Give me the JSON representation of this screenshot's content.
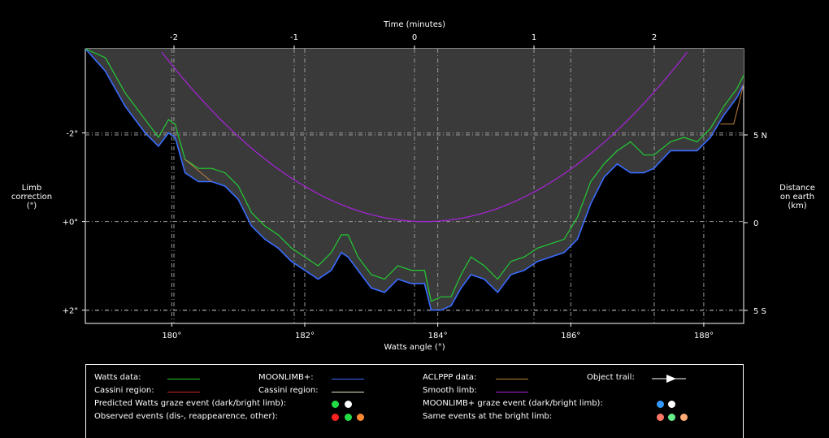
{
  "chart_data": {
    "type": "line",
    "top_axis": {
      "label": "Time (minutes)",
      "ticks": [
        "-2",
        "-1",
        "0",
        "1",
        "2"
      ]
    },
    "bottom_axis": {
      "label": "Watts angle (°)",
      "ticks": [
        "180°",
        "182°",
        "184°",
        "186°",
        "188°"
      ],
      "xlim": [
        178.7,
        188.6
      ]
    },
    "left_axis": {
      "label_lines": [
        "Limb",
        "correction",
        "(\")"
      ],
      "ticks": [
        "-2\"",
        "+0\"",
        "+2\""
      ],
      "ylim": [
        -3.9,
        2.3
      ],
      "inverted": true
    },
    "right_axis": {
      "label_lines": [
        "Distance",
        "on earth",
        "(km)"
      ],
      "ticks": [
        "5 N",
        "0",
        "5 S"
      ]
    },
    "grid": true,
    "colors": {
      "watts": "#22cc33",
      "moonlimb": "#3a6cff",
      "aclppp": "#c08040",
      "smooth": "#aa22dd",
      "cassini_watts": "#cc2222",
      "cassini_moonlimb": "#e8e8c8",
      "fill": "#3a3a3a"
    },
    "series": [
      {
        "name": "Watts data",
        "x": [
          178.7,
          179.0,
          179.3,
          179.6,
          179.8,
          179.95,
          180.05,
          180.2,
          180.4,
          180.6,
          180.8,
          181.0,
          181.2,
          181.4,
          181.6,
          181.8,
          182.0,
          182.2,
          182.4,
          182.55,
          182.65,
          182.8,
          183.0,
          183.2,
          183.4,
          183.6,
          183.8,
          183.9,
          184.05,
          184.2,
          184.35,
          184.5,
          184.7,
          184.9,
          185.1,
          185.3,
          185.5,
          185.7,
          185.9,
          186.1,
          186.3,
          186.5,
          186.7,
          186.9,
          187.1,
          187.25,
          187.5,
          187.7,
          187.9,
          188.1,
          188.3,
          188.5,
          188.6
        ],
        "y": [
          -4.0,
          -3.7,
          -2.9,
          -2.3,
          -1.9,
          -2.3,
          -2.2,
          -1.4,
          -1.2,
          -1.2,
          -1.1,
          -0.8,
          -0.2,
          0.1,
          0.3,
          0.6,
          0.8,
          1.0,
          0.7,
          0.3,
          0.3,
          0.8,
          1.2,
          1.3,
          1.0,
          1.1,
          1.1,
          1.8,
          1.7,
          1.7,
          1.2,
          0.8,
          1.0,
          1.3,
          0.9,
          0.8,
          0.6,
          0.5,
          0.4,
          -0.1,
          -0.9,
          -1.3,
          -1.6,
          -1.8,
          -1.5,
          -1.5,
          -1.8,
          -1.9,
          -1.8,
          -2.1,
          -2.6,
          -3.0,
          -3.3
        ]
      },
      {
        "name": "MOONLIMB+",
        "x": [
          178.7,
          179.0,
          179.3,
          179.6,
          179.8,
          179.95,
          180.05,
          180.2,
          180.4,
          180.6,
          180.8,
          181.0,
          181.2,
          181.4,
          181.6,
          181.8,
          182.0,
          182.2,
          182.4,
          182.55,
          182.65,
          182.8,
          183.0,
          183.2,
          183.4,
          183.6,
          183.8,
          183.9,
          184.05,
          184.2,
          184.35,
          184.5,
          184.7,
          184.9,
          185.1,
          185.3,
          185.5,
          185.7,
          185.9,
          186.1,
          186.3,
          186.5,
          186.7,
          186.9,
          187.1,
          187.25,
          187.5,
          187.7,
          187.9,
          188.1,
          188.3,
          188.5,
          188.6
        ],
        "y": [
          -4.0,
          -3.4,
          -2.6,
          -2.0,
          -1.7,
          -2.0,
          -1.9,
          -1.1,
          -0.9,
          -0.9,
          -0.8,
          -0.5,
          0.1,
          0.4,
          0.6,
          0.9,
          1.1,
          1.3,
          1.1,
          0.7,
          0.8,
          1.1,
          1.5,
          1.6,
          1.3,
          1.4,
          1.4,
          2.0,
          2.0,
          1.9,
          1.5,
          1.2,
          1.3,
          1.6,
          1.2,
          1.1,
          0.9,
          0.8,
          0.7,
          0.4,
          -0.4,
          -1.0,
          -1.3,
          -1.1,
          -1.1,
          -1.2,
          -1.6,
          -1.6,
          -1.6,
          -1.9,
          -2.4,
          -2.8,
          -3.1
        ]
      },
      {
        "name": "Smooth limb",
        "parabola": {
          "vertex_x": 183.8,
          "vertex_y": 0,
          "k": 0.245
        }
      },
      {
        "name": "ACLPPP data",
        "x": [
          180.2,
          180.6,
          188.25,
          188.45,
          188.6
        ],
        "y": [
          -1.4,
          -0.9,
          -2.2,
          -2.2,
          -3.1
        ]
      }
    ]
  },
  "legend": {
    "watts": "Watts data:",
    "cassini1": "Cassini region:",
    "moonlimb": "MOONLIMB+:",
    "cassini2": "Cassini region:",
    "aclppp": "ACLPPP data:",
    "smooth": "Smooth limb:",
    "trail": "Object trail:",
    "pred": "Predicted Watts graze event (dark/bright limb):",
    "mlgraze": "MOONLIMB+ graze event (dark/bright limb):",
    "obs": "Observed events (dis-, reappearence, other):",
    "same": "Same events at the bright limb:",
    "dots": {
      "pred": [
        "#22dd44",
        "#ffffff"
      ],
      "ml": [
        "#3399ff",
        "#ffffff"
      ],
      "obs": [
        "#ff2222",
        "#22dd44",
        "#ff8833"
      ],
      "same": [
        "#ff7766",
        "#66ee88",
        "#ffaa77"
      ]
    }
  }
}
